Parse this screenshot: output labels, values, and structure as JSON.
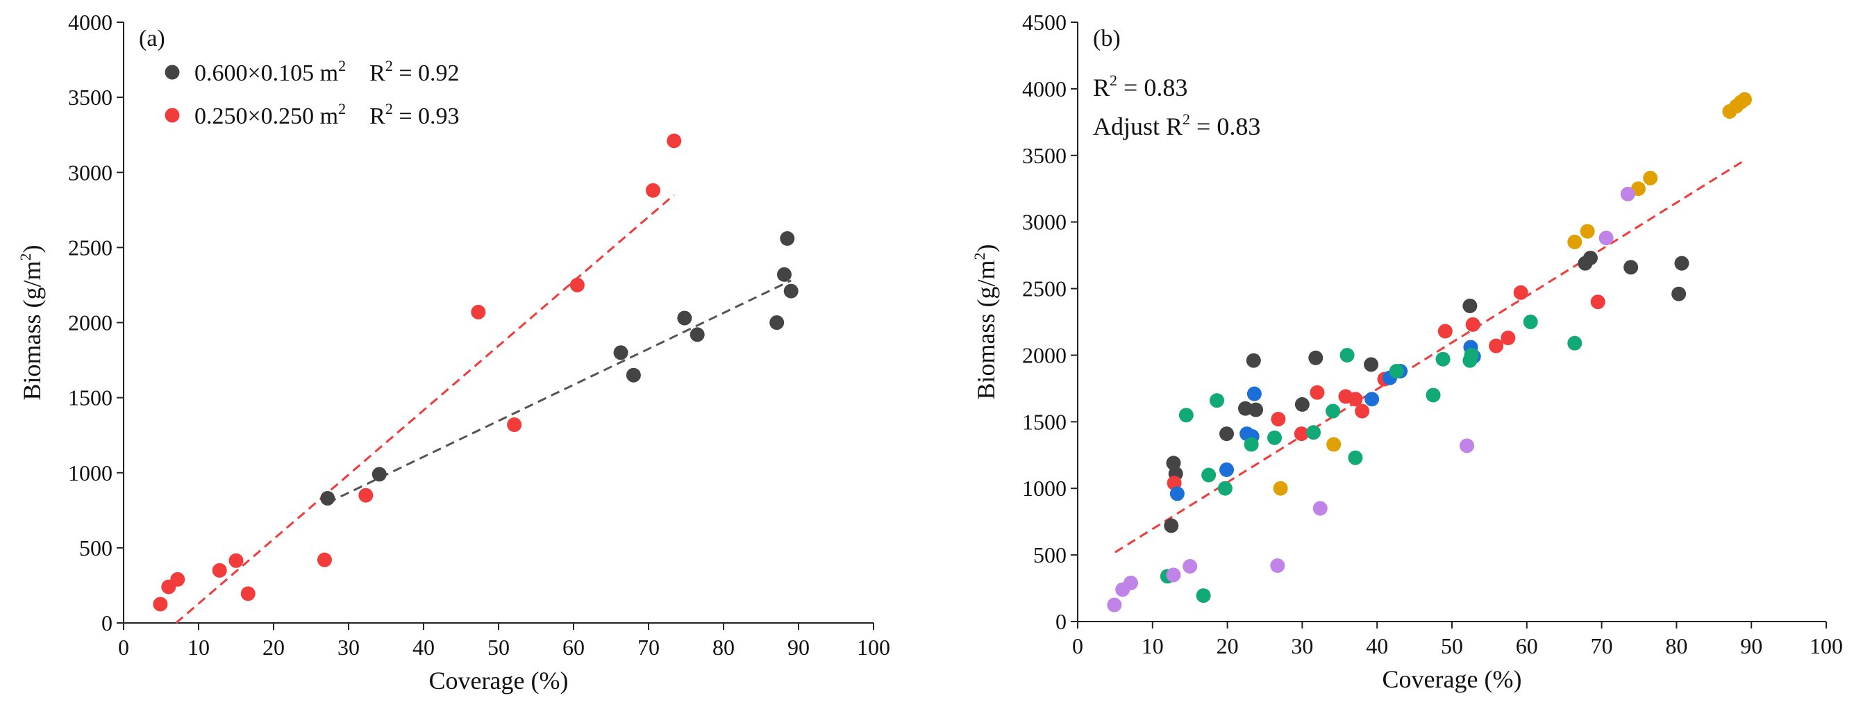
{
  "chart_data": [
    {
      "type": "scatter",
      "panel_label": "(a)",
      "xlabel": "Coverage (%)",
      "ylabel": "Biomass (g/m",
      "ylabel_sup": "2",
      "ylabel_tail": ")",
      "xlim": [
        0,
        100
      ],
      "ylim": [
        0,
        4000
      ],
      "xticks": [
        "0",
        "10",
        "20",
        "30",
        "40",
        "50",
        "60",
        "70",
        "80",
        "90",
        "100"
      ],
      "yticks": [
        "0",
        "500",
        "1000",
        "1500",
        "2000",
        "2500",
        "3000",
        "3500",
        "4000"
      ],
      "grid": false,
      "legend_position": "top-left",
      "series": [
        {
          "name": "0.600×0.105 m",
          "name_sup": "2",
          "r2_label": "R",
          "r2_sup": "2",
          "r2_value": " = 0.92",
          "color": "#444444",
          "x": [
            27.2,
            34.1,
            66.3,
            68.0,
            74.8,
            76.5,
            87.1,
            88.1,
            88.5,
            89.0
          ],
          "y": [
            830,
            990,
            1800,
            1650,
            2030,
            1920,
            2000,
            2320,
            2560,
            2210
          ],
          "fit": {
            "x": [
              27.2,
              89.0
            ],
            "y": [
              800,
              2280
            ],
            "color": "#555555"
          }
        },
        {
          "name": "0.250×0.250 m",
          "name_sup": "2",
          "r2_label": "R",
          "r2_sup": "2",
          "r2_value": " = 0.93",
          "color": "#f23b3b",
          "x": [
            4.9,
            6.0,
            7.2,
            12.8,
            15.0,
            16.6,
            26.8,
            32.3,
            47.3,
            52.1,
            60.5,
            70.6,
            73.4
          ],
          "y": [
            125,
            240,
            290,
            350,
            415,
            195,
            420,
            850,
            2070,
            1320,
            2250,
            2880,
            3210
          ],
          "fit": {
            "x": [
              7.0,
              73.4
            ],
            "y": [
              0,
              2850
            ],
            "color": "#f23b3b"
          }
        }
      ]
    },
    {
      "type": "scatter",
      "panel_label": "(b)",
      "xlabel": "Coverage (%)",
      "ylabel": "Biomass (g/m",
      "ylabel_sup": "2",
      "ylabel_tail": ")",
      "xlim": [
        0,
        100
      ],
      "ylim": [
        0,
        4500
      ],
      "xticks": [
        "0",
        "10",
        "20",
        "30",
        "40",
        "50",
        "60",
        "70",
        "80",
        "90",
        "100"
      ],
      "yticks": [
        "0",
        "500",
        "1000",
        "1500",
        "2000",
        "2500",
        "3000",
        "3500",
        "4000",
        "4500"
      ],
      "grid": false,
      "annotations": {
        "r2_label": "R",
        "r2_sup": "2",
        "r2_value": " = 0.83",
        "adj_label": "Adjust R",
        "adj_sup": "2",
        "adj_value": " = 0.83"
      },
      "fit": {
        "x": [
          5.0,
          89.0
        ],
        "y": [
          520,
          3460
        ],
        "color": "#f23b3b"
      },
      "series": [
        {
          "name": "gray",
          "color": "#444444",
          "x": [
            12.5,
            12.8,
            13.1,
            22.4,
            23.5,
            23.8,
            19.9,
            30.0,
            31.8,
            39.2,
            52.4,
            67.8,
            68.5,
            73.9,
            80.3,
            80.7
          ],
          "y": [
            720,
            1190,
            1110,
            1600,
            1960,
            1590,
            1410,
            1630,
            1980,
            1930,
            2370,
            2690,
            2730,
            2660,
            2460,
            2690
          ]
        },
        {
          "name": "red",
          "color": "#f23b3b",
          "x": [
            12.9,
            26.8,
            29.9,
            32.0,
            35.8,
            37.1,
            38.0,
            41.0,
            49.1,
            52.8,
            55.9,
            57.5,
            59.2,
            69.5
          ],
          "y": [
            1040,
            1520,
            1410,
            1720,
            1690,
            1670,
            1580,
            1820,
            2180,
            2230,
            2070,
            2130,
            2470,
            2400
          ]
        },
        {
          "name": "blue",
          "color": "#1a70d8",
          "x": [
            13.3,
            19.9,
            22.6,
            23.6,
            23.3,
            39.3,
            41.7,
            43.1,
            52.5,
            52.9
          ],
          "y": [
            960,
            1140,
            1410,
            1710,
            1390,
            1670,
            1830,
            1880,
            2060,
            1990
          ]
        },
        {
          "name": "green",
          "color": "#11aa77",
          "x": [
            12.0,
            14.5,
            16.8,
            17.5,
            18.6,
            19.7,
            23.2,
            26.3,
            31.5,
            34.1,
            36.0,
            37.1,
            42.6,
            47.5,
            48.8,
            52.4,
            52.6,
            60.5,
            66.4
          ],
          "y": [
            340,
            1550,
            195,
            1100,
            1660,
            1000,
            1330,
            1380,
            1420,
            1580,
            2000,
            1230,
            1880,
            1700,
            1970,
            1960,
            2000,
            2250,
            2090
          ]
        },
        {
          "name": "orange",
          "color": "#e0a000",
          "x": [
            27.1,
            34.2,
            66.4,
            68.1,
            74.9,
            76.5,
            87.1,
            88.0,
            88.6,
            89.1
          ],
          "y": [
            1000,
            1330,
            2850,
            2930,
            3250,
            3330,
            3830,
            3870,
            3900,
            3920
          ]
        },
        {
          "name": "purple",
          "color": "#c083e8",
          "x": [
            4.9,
            6.0,
            7.1,
            12.8,
            15.0,
            26.7,
            32.4,
            52.0,
            70.6,
            73.5
          ],
          "y": [
            125,
            240,
            290,
            350,
            415,
            420,
            850,
            1320,
            2880,
            3210
          ]
        }
      ]
    }
  ]
}
